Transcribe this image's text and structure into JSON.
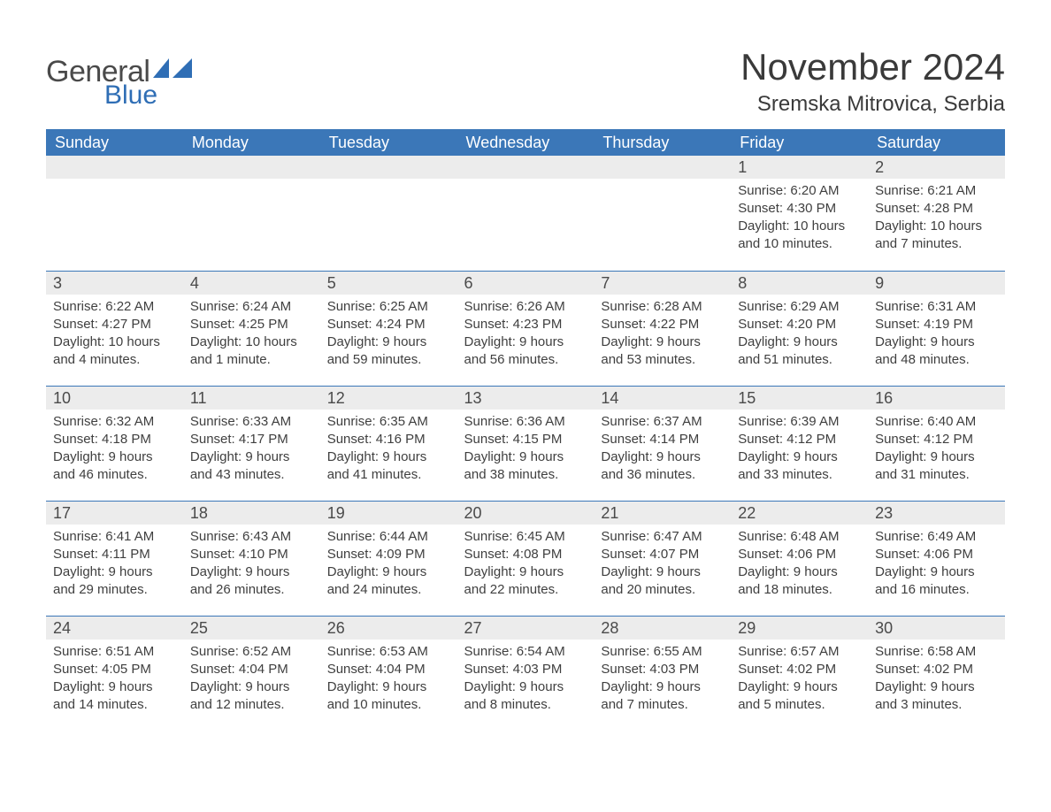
{
  "brand": {
    "word1": "General",
    "word2": "Blue",
    "accent_color": "#2f6eb5"
  },
  "title": "November 2024",
  "location": "Sremska Mitrovica, Serbia",
  "colors": {
    "header_bg": "#3b77b8",
    "header_text": "#ffffff",
    "daynum_bg": "#ececec",
    "text": "#3a3a3a",
    "rule": "#3b77b8",
    "page_bg": "#ffffff"
  },
  "weekdays": [
    "Sunday",
    "Monday",
    "Tuesday",
    "Wednesday",
    "Thursday",
    "Friday",
    "Saturday"
  ],
  "weeks": [
    [
      null,
      null,
      null,
      null,
      null,
      {
        "n": "1",
        "sunrise": "Sunrise: 6:20 AM",
        "sunset": "Sunset: 4:30 PM",
        "daylight": "Daylight: 10 hours and 10 minutes."
      },
      {
        "n": "2",
        "sunrise": "Sunrise: 6:21 AM",
        "sunset": "Sunset: 4:28 PM",
        "daylight": "Daylight: 10 hours and 7 minutes."
      }
    ],
    [
      {
        "n": "3",
        "sunrise": "Sunrise: 6:22 AM",
        "sunset": "Sunset: 4:27 PM",
        "daylight": "Daylight: 10 hours and 4 minutes."
      },
      {
        "n": "4",
        "sunrise": "Sunrise: 6:24 AM",
        "sunset": "Sunset: 4:25 PM",
        "daylight": "Daylight: 10 hours and 1 minute."
      },
      {
        "n": "5",
        "sunrise": "Sunrise: 6:25 AM",
        "sunset": "Sunset: 4:24 PM",
        "daylight": "Daylight: 9 hours and 59 minutes."
      },
      {
        "n": "6",
        "sunrise": "Sunrise: 6:26 AM",
        "sunset": "Sunset: 4:23 PM",
        "daylight": "Daylight: 9 hours and 56 minutes."
      },
      {
        "n": "7",
        "sunrise": "Sunrise: 6:28 AM",
        "sunset": "Sunset: 4:22 PM",
        "daylight": "Daylight: 9 hours and 53 minutes."
      },
      {
        "n": "8",
        "sunrise": "Sunrise: 6:29 AM",
        "sunset": "Sunset: 4:20 PM",
        "daylight": "Daylight: 9 hours and 51 minutes."
      },
      {
        "n": "9",
        "sunrise": "Sunrise: 6:31 AM",
        "sunset": "Sunset: 4:19 PM",
        "daylight": "Daylight: 9 hours and 48 minutes."
      }
    ],
    [
      {
        "n": "10",
        "sunrise": "Sunrise: 6:32 AM",
        "sunset": "Sunset: 4:18 PM",
        "daylight": "Daylight: 9 hours and 46 minutes."
      },
      {
        "n": "11",
        "sunrise": "Sunrise: 6:33 AM",
        "sunset": "Sunset: 4:17 PM",
        "daylight": "Daylight: 9 hours and 43 minutes."
      },
      {
        "n": "12",
        "sunrise": "Sunrise: 6:35 AM",
        "sunset": "Sunset: 4:16 PM",
        "daylight": "Daylight: 9 hours and 41 minutes."
      },
      {
        "n": "13",
        "sunrise": "Sunrise: 6:36 AM",
        "sunset": "Sunset: 4:15 PM",
        "daylight": "Daylight: 9 hours and 38 minutes."
      },
      {
        "n": "14",
        "sunrise": "Sunrise: 6:37 AM",
        "sunset": "Sunset: 4:14 PM",
        "daylight": "Daylight: 9 hours and 36 minutes."
      },
      {
        "n": "15",
        "sunrise": "Sunrise: 6:39 AM",
        "sunset": "Sunset: 4:12 PM",
        "daylight": "Daylight: 9 hours and 33 minutes."
      },
      {
        "n": "16",
        "sunrise": "Sunrise: 6:40 AM",
        "sunset": "Sunset: 4:12 PM",
        "daylight": "Daylight: 9 hours and 31 minutes."
      }
    ],
    [
      {
        "n": "17",
        "sunrise": "Sunrise: 6:41 AM",
        "sunset": "Sunset: 4:11 PM",
        "daylight": "Daylight: 9 hours and 29 minutes."
      },
      {
        "n": "18",
        "sunrise": "Sunrise: 6:43 AM",
        "sunset": "Sunset: 4:10 PM",
        "daylight": "Daylight: 9 hours and 26 minutes."
      },
      {
        "n": "19",
        "sunrise": "Sunrise: 6:44 AM",
        "sunset": "Sunset: 4:09 PM",
        "daylight": "Daylight: 9 hours and 24 minutes."
      },
      {
        "n": "20",
        "sunrise": "Sunrise: 6:45 AM",
        "sunset": "Sunset: 4:08 PM",
        "daylight": "Daylight: 9 hours and 22 minutes."
      },
      {
        "n": "21",
        "sunrise": "Sunrise: 6:47 AM",
        "sunset": "Sunset: 4:07 PM",
        "daylight": "Daylight: 9 hours and 20 minutes."
      },
      {
        "n": "22",
        "sunrise": "Sunrise: 6:48 AM",
        "sunset": "Sunset: 4:06 PM",
        "daylight": "Daylight: 9 hours and 18 minutes."
      },
      {
        "n": "23",
        "sunrise": "Sunrise: 6:49 AM",
        "sunset": "Sunset: 4:06 PM",
        "daylight": "Daylight: 9 hours and 16 minutes."
      }
    ],
    [
      {
        "n": "24",
        "sunrise": "Sunrise: 6:51 AM",
        "sunset": "Sunset: 4:05 PM",
        "daylight": "Daylight: 9 hours and 14 minutes."
      },
      {
        "n": "25",
        "sunrise": "Sunrise: 6:52 AM",
        "sunset": "Sunset: 4:04 PM",
        "daylight": "Daylight: 9 hours and 12 minutes."
      },
      {
        "n": "26",
        "sunrise": "Sunrise: 6:53 AM",
        "sunset": "Sunset: 4:04 PM",
        "daylight": "Daylight: 9 hours and 10 minutes."
      },
      {
        "n": "27",
        "sunrise": "Sunrise: 6:54 AM",
        "sunset": "Sunset: 4:03 PM",
        "daylight": "Daylight: 9 hours and 8 minutes."
      },
      {
        "n": "28",
        "sunrise": "Sunrise: 6:55 AM",
        "sunset": "Sunset: 4:03 PM",
        "daylight": "Daylight: 9 hours and 7 minutes."
      },
      {
        "n": "29",
        "sunrise": "Sunrise: 6:57 AM",
        "sunset": "Sunset: 4:02 PM",
        "daylight": "Daylight: 9 hours and 5 minutes."
      },
      {
        "n": "30",
        "sunrise": "Sunrise: 6:58 AM",
        "sunset": "Sunset: 4:02 PM",
        "daylight": "Daylight: 9 hours and 3 minutes."
      }
    ]
  ]
}
